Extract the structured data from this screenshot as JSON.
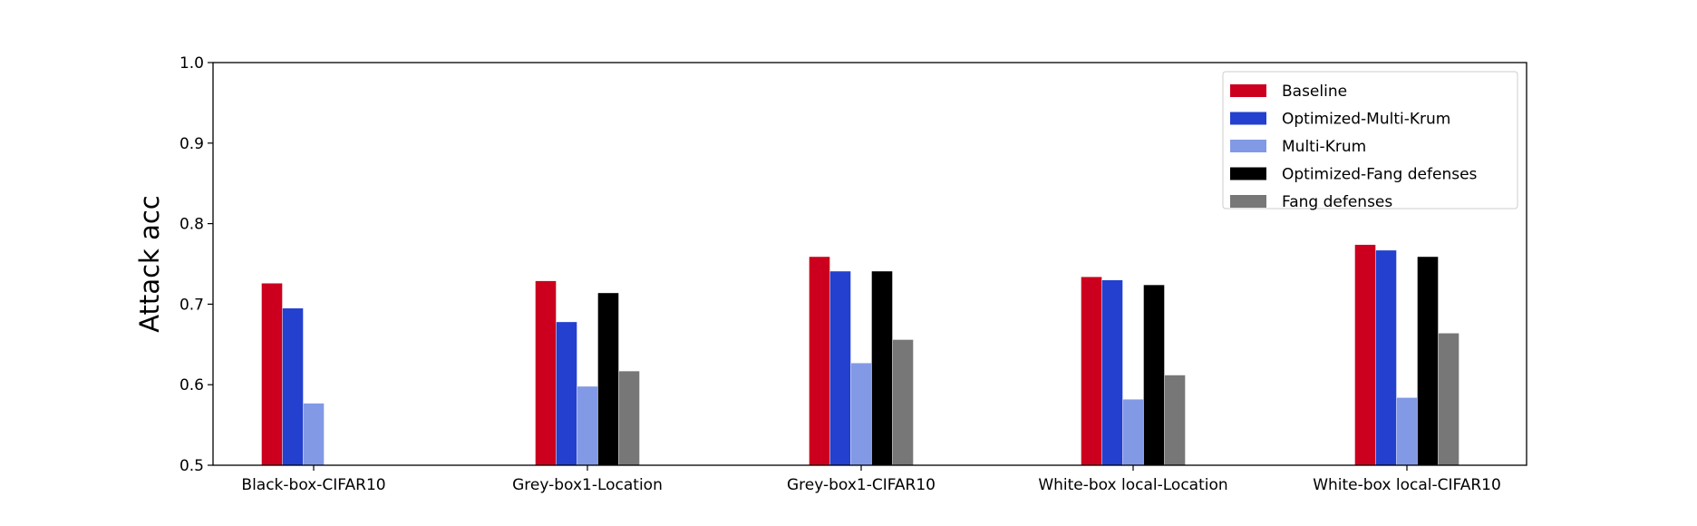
{
  "chart_data": {
    "type": "bar",
    "title": "",
    "xlabel": "",
    "ylabel": "Attack acc",
    "ylim": [
      0.5,
      1.0
    ],
    "yticks": [
      "0.5",
      "0.6",
      "0.7",
      "0.8",
      "0.9",
      "1.0"
    ],
    "grid": false,
    "legend_position": "top-right",
    "categories": [
      "Black-box-CIFAR10",
      "Grey-box1-Location",
      "Grey-box1-CIFAR10",
      "White-box local-Location",
      "White-box local-CIFAR10"
    ],
    "series": [
      {
        "name": "Baseline",
        "color": "#cc001e",
        "values": [
          0.726,
          0.729,
          0.759,
          0.734,
          0.774
        ]
      },
      {
        "name": "Optimized-Multi-Krum",
        "color": "#2440cf",
        "values": [
          0.695,
          0.678,
          0.741,
          0.73,
          0.767
        ]
      },
      {
        "name": "Multi-Krum",
        "color": "#8299e6",
        "values": [
          0.577,
          0.598,
          0.627,
          0.582,
          0.584
        ]
      },
      {
        "name": "Optimized-Fang defenses",
        "color": "#000000",
        "values": [
          null,
          0.714,
          0.741,
          0.724,
          0.759
        ]
      },
      {
        "name": "Fang defenses",
        "color": "#777777",
        "values": [
          null,
          0.617,
          0.656,
          0.612,
          0.664
        ]
      }
    ]
  }
}
